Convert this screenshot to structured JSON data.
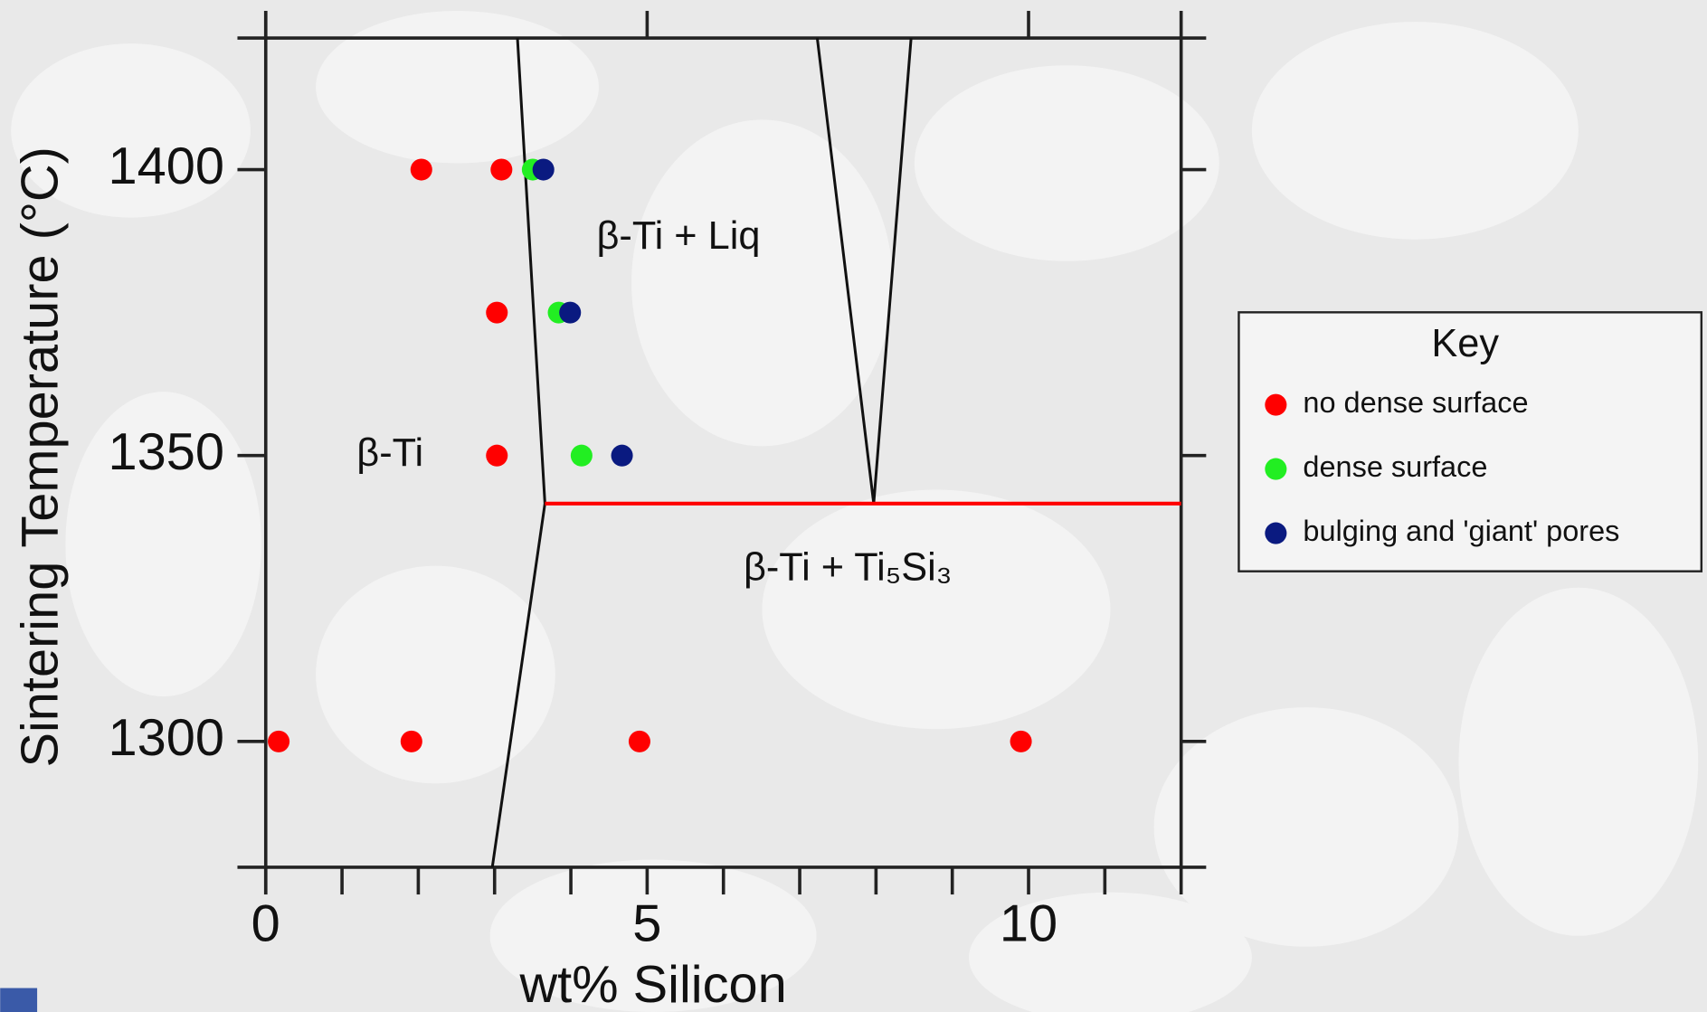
{
  "chart_data": {
    "type": "scatter",
    "x_label": "wt% Silicon",
    "y_label": "Sintering  Temperature (°C)",
    "xlim": [
      0,
      12
    ],
    "ylim": [
      1278,
      1423
    ],
    "xticks": [
      0,
      5,
      10
    ],
    "xminorticks": [
      1,
      2,
      3,
      4,
      6,
      7,
      8,
      9,
      11
    ],
    "yticks": [
      1300,
      1350,
      1400
    ],
    "legend": "right",
    "legend_title": "Key",
    "series": [
      {
        "name": "no dense surface",
        "color": "#ff0000",
        "x": [
          0.17,
          1.91,
          4.9,
          9.9,
          2.04,
          3.09,
          3.03,
          3.03
        ],
        "values": [
          1300,
          1300,
          1300,
          1300,
          1400,
          1400,
          1375,
          1350
        ]
      },
      {
        "name": "dense surface",
        "color": "#22ee22",
        "x": [
          3.5,
          3.84,
          4.14
        ],
        "values": [
          1400,
          1375,
          1350
        ]
      },
      {
        "name": "bulging and 'giant' pores",
        "color": "#0a1a80",
        "x": [
          3.64,
          3.99,
          4.67
        ],
        "values": [
          1400,
          1375,
          1350
        ]
      }
    ],
    "lines": [
      {
        "color": "#111111",
        "x": [
          3.3,
          3.66,
          2.97
        ],
        "values": [
          1423,
          1341.6,
          1278
        ]
      },
      {
        "color": "#111111",
        "x": [
          7.23,
          7.97,
          8.46
        ],
        "values": [
          1423,
          1341.6,
          1423
        ]
      },
      {
        "color": "#ff0000",
        "x": [
          3.66,
          12
        ],
        "values": [
          1341.6,
          1341.6
        ]
      }
    ],
    "annotations": [
      {
        "text": "β-Ti + Liq",
        "x": 5.41,
        "y": 1388
      },
      {
        "text": "β-Ti",
        "x": 1.63,
        "y": 1350
      },
      {
        "text": "β-Ti + Ti₅Si₃",
        "x": 7.63,
        "y": 1330
      }
    ]
  }
}
